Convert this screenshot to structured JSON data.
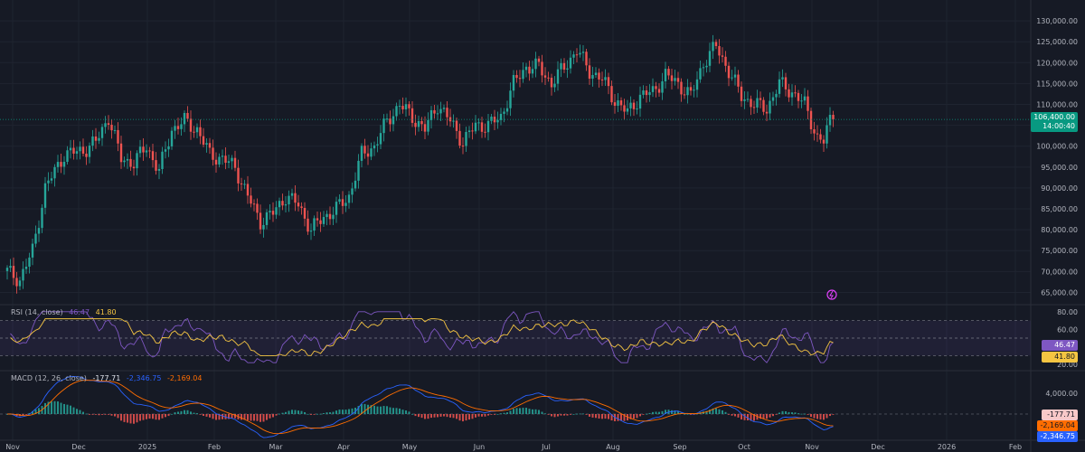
{
  "chart_data": {
    "type": "candlestick",
    "x_ticks": [
      "Nov",
      "Dec",
      "2025",
      "Feb",
      "Mar",
      "Apr",
      "May",
      "Jun",
      "Jul",
      "Aug",
      "Sep",
      "Oct",
      "Nov",
      "Dec",
      "2026",
      "Feb"
    ],
    "price_axis": {
      "ticks": [
        "65,000.00",
        "70,000.00",
        "75,000.00",
        "80,000.00",
        "85,000.00",
        "90,000.00",
        "95,000.00",
        "100,000.00",
        "105,000.00",
        "110,000.00",
        "115,000.00",
        "120,000.00",
        "125,000.00",
        "130,000.00"
      ],
      "range": [
        62500,
        135000
      ]
    },
    "last_price": {
      "value": "106,400.00",
      "countdown": "14:00:40"
    },
    "price_path": [
      [
        0,
        70000
      ],
      [
        4,
        68000
      ],
      [
        8,
        75000
      ],
      [
        12,
        90000
      ],
      [
        18,
        98000
      ],
      [
        24,
        99000
      ],
      [
        28,
        101000
      ],
      [
        32,
        107000
      ],
      [
        36,
        97000
      ],
      [
        40,
        96000
      ],
      [
        44,
        100000
      ],
      [
        48,
        94000
      ],
      [
        52,
        104000
      ],
      [
        56,
        106000
      ],
      [
        60,
        104000
      ],
      [
        64,
        98000
      ],
      [
        68,
        97000
      ],
      [
        72,
        95000
      ],
      [
        76,
        88000
      ],
      [
        80,
        82000
      ],
      [
        84,
        84000
      ],
      [
        88,
        88000
      ],
      [
        92,
        86000
      ],
      [
        96,
        80000
      ],
      [
        100,
        83000
      ],
      [
        104,
        85000
      ],
      [
        108,
        88000
      ],
      [
        112,
        98000
      ],
      [
        116,
        100000
      ],
      [
        120,
        106000
      ],
      [
        124,
        110000
      ],
      [
        128,
        107000
      ],
      [
        132,
        104000
      ],
      [
        136,
        110000
      ],
      [
        140,
        106000
      ],
      [
        144,
        101000
      ],
      [
        148,
        105000
      ],
      [
        152,
        105000
      ],
      [
        156,
        107000
      ],
      [
        160,
        115000
      ],
      [
        164,
        119000
      ],
      [
        168,
        119000
      ],
      [
        172,
        115000
      ],
      [
        176,
        119000
      ],
      [
        180,
        123000
      ],
      [
        184,
        118000
      ],
      [
        188,
        116000
      ],
      [
        192,
        111000
      ],
      [
        196,
        108000
      ],
      [
        200,
        112000
      ],
      [
        204,
        113000
      ],
      [
        208,
        117000
      ],
      [
        212,
        115000
      ],
      [
        216,
        112000
      ],
      [
        220,
        120000
      ],
      [
        224,
        124000
      ],
      [
        228,
        118000
      ],
      [
        232,
        112000
      ],
      [
        236,
        110000
      ],
      [
        240,
        109000
      ],
      [
        244,
        115000
      ],
      [
        248,
        113000
      ],
      [
        252,
        110000
      ],
      [
        256,
        102000
      ],
      [
        258,
        101000
      ],
      [
        260,
        106400
      ]
    ],
    "rsi": {
      "label": "RSI (14, close)",
      "rsi_value": "46.47",
      "ma_value": "41.80",
      "ticks": [
        "80.00",
        "60.00",
        "40.00",
        "20.00"
      ],
      "range": [
        15,
        85
      ],
      "band": [
        30,
        70
      ],
      "colors": {
        "rsi": "#7e57c2",
        "ma": "#f5c542"
      }
    },
    "macd": {
      "label": "MACD (12, 26, close)",
      "histogram_value": "-177.71",
      "macd_value": "-2,346.75",
      "signal_value": "-2,169.04",
      "ticks": [
        "4,000.00",
        "0.00"
      ],
      "colors": {
        "macd": "#2962ff",
        "signal": "#ff6d00",
        "hist_up": "#26a69a",
        "hist_down": "#ef5350"
      }
    },
    "colors": {
      "up": "#26a69a",
      "down": "#ef5350",
      "last_price_badge": "#089981",
      "background": "#161a25"
    }
  }
}
